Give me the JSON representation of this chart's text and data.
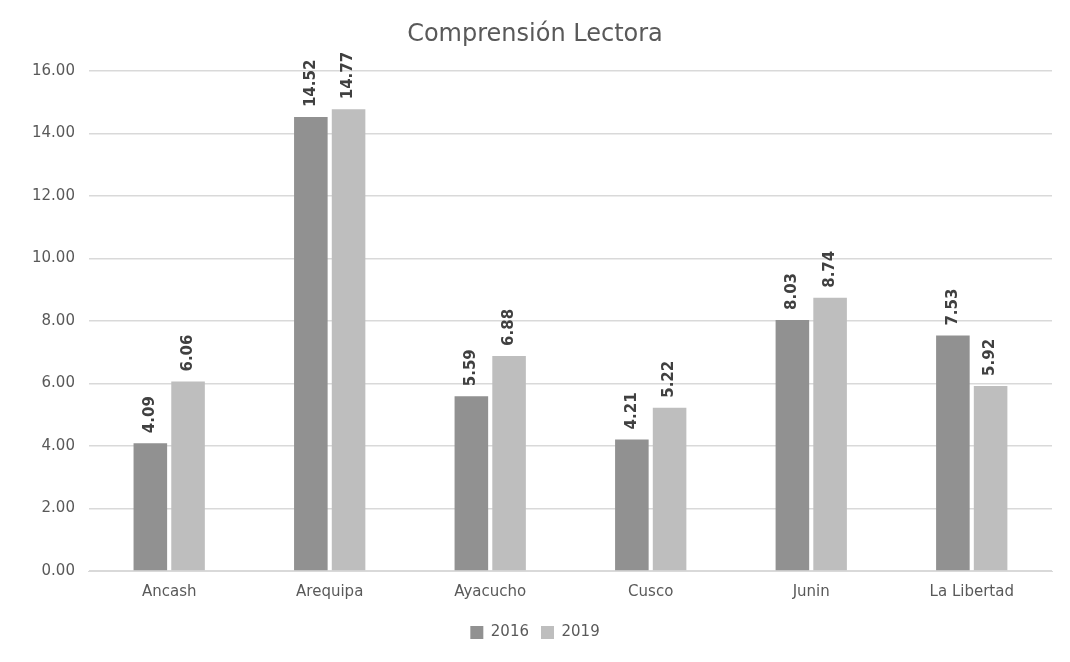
{
  "chart_data": {
    "type": "bar",
    "title": "Comprensión Lectora",
    "categories": [
      "Ancash",
      "Arequipa",
      "Ayacucho",
      "Cusco",
      "Junin",
      "La Libertad"
    ],
    "series": [
      {
        "name": "2016",
        "color": "#919191",
        "values": [
          4.09,
          14.52,
          5.59,
          4.21,
          8.03,
          7.53
        ]
      },
      {
        "name": "2019",
        "color": "#bebebe",
        "values": [
          6.06,
          14.77,
          6.88,
          5.22,
          8.74,
          5.92
        ]
      }
    ],
    "ylim": [
      0,
      16
    ],
    "yticks": [
      {
        "value": 0,
        "label": "0.00"
      },
      {
        "value": 2,
        "label": "2.00"
      },
      {
        "value": 4,
        "label": "4.00"
      },
      {
        "value": 6,
        "label": "6.00"
      },
      {
        "value": 8,
        "label": "8.00"
      },
      {
        "value": 10,
        "label": "10.00"
      },
      {
        "value": 12,
        "label": "12.00"
      },
      {
        "value": 14,
        "label": "14.00"
      },
      {
        "value": 16,
        "label": "16.00"
      }
    ],
    "value_labels": [
      [
        "4.09",
        "14.52",
        "5.59",
        "4.21",
        "8.03",
        "7.53"
      ],
      [
        "6.06",
        "14.77",
        "6.88",
        "5.22",
        "8.74",
        "5.92"
      ]
    ],
    "grid": "y",
    "legend": "bottom"
  }
}
